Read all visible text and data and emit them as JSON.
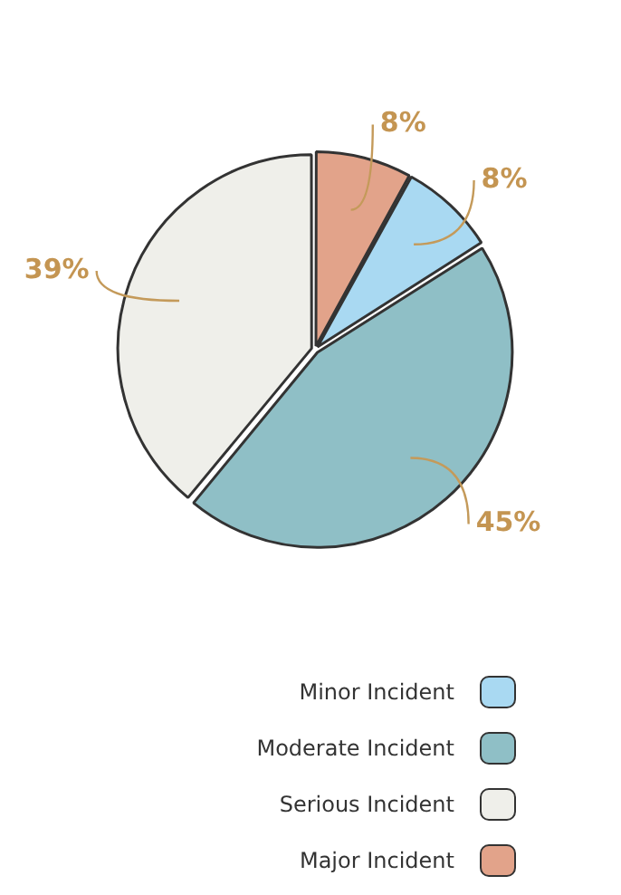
{
  "chart_data": {
    "type": "pie",
    "categories": [
      "Minor Incident",
      "Moderate Incident",
      "Serious Incident",
      "Major Incident"
    ],
    "values": [
      8,
      45,
      39,
      8
    ],
    "colors": [
      "#a9d9f2",
      "#8fbfc6",
      "#efefea",
      "#e2a38a"
    ],
    "value_labels": [
      "8%",
      "45%",
      "39%",
      "8%"
    ],
    "legend": "bottom right"
  }
}
